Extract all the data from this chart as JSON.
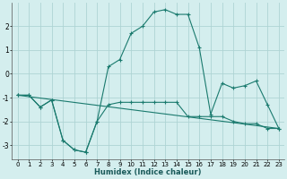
{
  "xlabel": "Humidex (Indice chaleur)",
  "bg_color": "#d4eeee",
  "grid_color": "#aed4d4",
  "line_color": "#1a7a6e",
  "xlim": [
    -0.5,
    23.5
  ],
  "ylim": [
    -3.6,
    3.0
  ],
  "yticks": [
    -3,
    -2,
    -1,
    0,
    1,
    2
  ],
  "xticks": [
    0,
    1,
    2,
    3,
    4,
    5,
    6,
    7,
    8,
    9,
    10,
    11,
    12,
    13,
    14,
    15,
    16,
    17,
    18,
    19,
    20,
    21,
    22,
    23
  ],
  "series1_x": [
    0,
    1,
    2,
    3,
    4,
    5,
    6,
    7,
    8,
    9,
    10,
    11,
    12,
    13,
    14,
    15,
    16,
    17,
    18,
    19,
    20,
    21,
    22,
    23
  ],
  "series1_y": [
    -0.9,
    -0.9,
    -1.4,
    -1.1,
    -2.8,
    -3.2,
    -3.3,
    -2.0,
    -1.3,
    -1.2,
    -1.2,
    -1.2,
    -1.2,
    -1.2,
    -1.2,
    -1.8,
    -1.8,
    -1.8,
    -1.8,
    -2.0,
    -2.1,
    -2.1,
    -2.3,
    -2.3
  ],
  "series2_x": [
    0,
    1,
    2,
    3,
    4,
    5,
    6,
    7,
    8,
    9,
    10,
    11,
    12,
    13,
    14,
    15,
    16,
    17,
    18,
    19,
    20,
    21,
    22,
    23
  ],
  "series2_y": [
    -0.9,
    -0.9,
    -1.4,
    -1.1,
    -2.8,
    -3.2,
    -3.3,
    -2.0,
    0.3,
    0.6,
    1.7,
    2.0,
    2.6,
    2.7,
    2.5,
    2.5,
    1.1,
    -1.7,
    -0.4,
    -0.6,
    -0.5,
    -0.3,
    -1.3,
    -2.3
  ],
  "series3_x": [
    0,
    23
  ],
  "series3_y": [
    -0.9,
    -2.3
  ]
}
